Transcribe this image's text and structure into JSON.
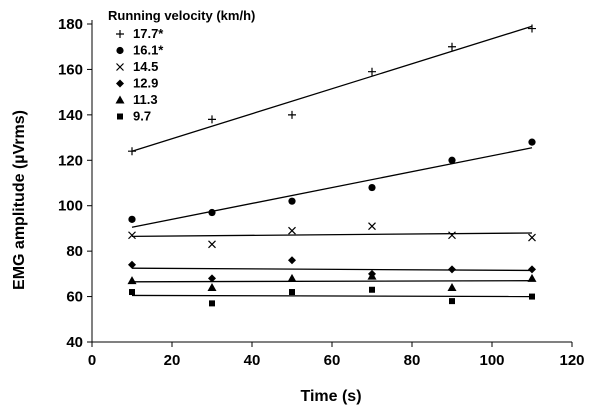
{
  "chart_data": {
    "type": "scatter",
    "title": "",
    "xlabel": "Time (s)",
    "ylabel": "EMG amplitude (µVrms)",
    "xlim": [
      0,
      120
    ],
    "ylim": [
      40,
      180
    ],
    "xticks": [
      0,
      20,
      40,
      60,
      80,
      100,
      120
    ],
    "yticks": [
      40,
      60,
      80,
      100,
      120,
      140,
      160,
      180
    ],
    "grid": false,
    "legend": {
      "title": "Running velocity (km/h)",
      "placement": "top-left"
    },
    "series": [
      {
        "name": "17.7*",
        "marker": "plus",
        "x": [
          10,
          30,
          50,
          70,
          90,
          110
        ],
        "y": [
          124,
          138,
          140,
          159,
          170,
          178
        ],
        "trend": [
          [
            10,
            124
          ],
          [
            110,
            179
          ]
        ]
      },
      {
        "name": "16.1*",
        "marker": "circle",
        "x": [
          10,
          30,
          50,
          70,
          90,
          110
        ],
        "y": [
          94,
          97,
          102,
          108,
          120,
          128
        ],
        "trend": [
          [
            10,
            90.5
          ],
          [
            110,
            125.5
          ]
        ]
      },
      {
        "name": "14.5",
        "marker": "cross",
        "x": [
          10,
          30,
          50,
          70,
          90,
          110
        ],
        "y": [
          87,
          83,
          89,
          91,
          87,
          86
        ],
        "trend": [
          [
            10,
            86.5
          ],
          [
            110,
            88
          ]
        ]
      },
      {
        "name": "12.9",
        "marker": "diamond",
        "x": [
          10,
          30,
          50,
          70,
          90,
          110
        ],
        "y": [
          74,
          68,
          76,
          70,
          72,
          72
        ],
        "trend": [
          [
            10,
            72.5
          ],
          [
            110,
            71.5
          ]
        ]
      },
      {
        "name": "11.3",
        "marker": "triangle",
        "x": [
          10,
          30,
          50,
          70,
          90,
          110
        ],
        "y": [
          67,
          64,
          68,
          69,
          64,
          68
        ],
        "trend": [
          [
            10,
            66.5
          ],
          [
            110,
            67
          ]
        ]
      },
      {
        "name": "9.7",
        "marker": "square",
        "x": [
          10,
          30,
          50,
          70,
          90,
          110
        ],
        "y": [
          62,
          57,
          62,
          63,
          58,
          60
        ],
        "trend": [
          [
            10,
            60.5
          ],
          [
            110,
            60
          ]
        ]
      }
    ]
  }
}
